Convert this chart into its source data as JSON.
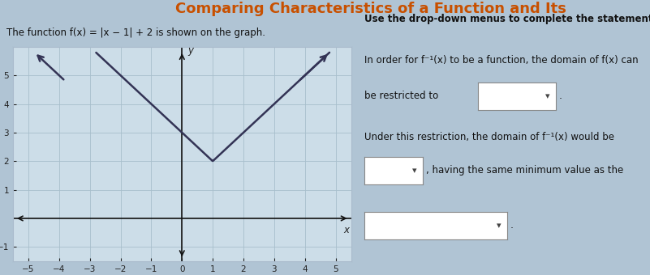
{
  "title": "Comparing Characteristics of a Function and Its",
  "title_color": "#c85000",
  "bg_color": "#b0c4d4",
  "graph_bg": "#ccdde8",
  "graph_border": "#aabbcc",
  "left_label": "The function f(x) = |x − 1| + 2 is shown on the graph.",
  "right_header": "Use the drop-down menus to complete the statements.",
  "r1": "In order for f⁻¹(x) to be a function, the domain of f(x) can",
  "r2": "be restricted to",
  "r3": "Under this restriction, the domain of f⁻¹(x) would be",
  "r4": ", having the same minimum value as the",
  "r5": ".",
  "xlim": [
    -5.5,
    5.5
  ],
  "ylim": [
    -1.5,
    6.0
  ],
  "xticks": [
    -5,
    -4,
    -3,
    -2,
    -1,
    0,
    1,
    2,
    3,
    4,
    5
  ],
  "yticks": [
    -1,
    1,
    2,
    3,
    4,
    5
  ],
  "line_color": "#333355",
  "line_width": 1.8,
  "axis_color": "#111111",
  "grid_color": "#a8bfcc",
  "tick_color": "#222222"
}
